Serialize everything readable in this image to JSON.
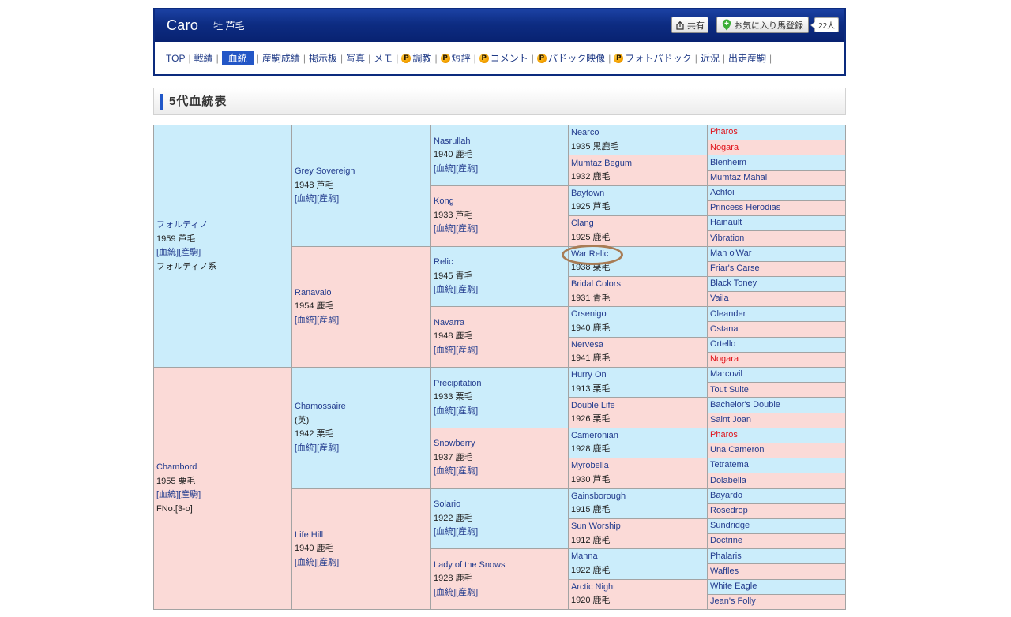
{
  "theme": {
    "brand": "#0c2b7e",
    "active_tab": "#2356c6",
    "section_marker": "#1f56c8"
  },
  "header": {
    "horse_name": "Caro",
    "sex_color": "牡 芦毛",
    "share_button": {
      "label": "共有",
      "icon": "share-icon"
    },
    "favorite_button": {
      "label": "お気に入り馬登録",
      "icon": "pin-plus-icon"
    },
    "favorite_count": "22人"
  },
  "nav": {
    "separator": "|",
    "premium_icon": {
      "name": "premium-p-icon",
      "glyph": "P"
    },
    "items": [
      {
        "label": "TOP"
      },
      {
        "label": "戦績"
      },
      {
        "label": "血統",
        "active": true
      },
      {
        "label": "産駒成績"
      },
      {
        "label": "掲示板"
      },
      {
        "label": "写真"
      },
      {
        "label": "メモ"
      },
      {
        "label": "調教",
        "premium": true
      },
      {
        "label": "短評",
        "premium": true
      },
      {
        "label": "コメント",
        "premium": true
      },
      {
        "label": "パドック映像",
        "premium": true
      },
      {
        "label": "フォトパドック",
        "premium": true
      },
      {
        "label": "近況"
      },
      {
        "label": "出走産駒"
      }
    ]
  },
  "section": {
    "title": "5代血統表"
  },
  "pedigree": {
    "colors": {
      "sire_bg": "#cbedfb",
      "dam_bg": "#fbdad7",
      "link": "#233c8e",
      "cross": "#e0141b"
    },
    "link_labels": [
      "[血統]",
      "[産駒]"
    ],
    "generations": [
      {
        "show_links": true,
        "horses": [
          {
            "name": "フォルティノ",
            "info": "1959 芦毛",
            "note": "フォルティノ系"
          },
          {
            "name": "Chambord",
            "info": "1955 栗毛",
            "note": "FNo.[3-o]"
          }
        ]
      },
      {
        "show_links": true,
        "horses": [
          {
            "name": "Grey Sovereign",
            "info": "1948 芦毛"
          },
          {
            "name": "Ranavalo",
            "info": "1954 鹿毛"
          },
          {
            "name": "Chamossaire",
            "origin": "(英)",
            "info": "1942 栗毛"
          },
          {
            "name": "Life Hill",
            "info": "1940 鹿毛"
          }
        ]
      },
      {
        "show_links": true,
        "horses": [
          {
            "name": "Nasrullah",
            "info": "1940 鹿毛"
          },
          {
            "name": "Kong",
            "info": "1933 芦毛"
          },
          {
            "name": "Relic",
            "info": "1945 青毛"
          },
          {
            "name": "Navarra",
            "info": "1948 鹿毛"
          },
          {
            "name": "Precipitation",
            "info": "1933 栗毛"
          },
          {
            "name": "Snowberry",
            "info": "1937 鹿毛"
          },
          {
            "name": "Solario",
            "info": "1922 鹿毛"
          },
          {
            "name": "Lady of the Snows",
            "info": "1928 鹿毛"
          }
        ]
      },
      {
        "show_links": false,
        "horses": [
          {
            "name": "Nearco",
            "info": "1935 黒鹿毛"
          },
          {
            "name": "Mumtaz Begum",
            "info": "1932 鹿毛"
          },
          {
            "name": "Baytown",
            "info": "1925 芦毛"
          },
          {
            "name": "Clang",
            "info": "1925 鹿毛"
          },
          {
            "name": "War Relic",
            "info": "1938 栗毛"
          },
          {
            "name": "Bridal Colors",
            "info": "1931 青毛"
          },
          {
            "name": "Orsenigo",
            "info": "1940 鹿毛"
          },
          {
            "name": "Nervesa",
            "info": "1941 鹿毛"
          },
          {
            "name": "Hurry On",
            "info": "1913 栗毛"
          },
          {
            "name": "Double Life",
            "info": "1926 栗毛"
          },
          {
            "name": "Cameronian",
            "info": "1928 鹿毛"
          },
          {
            "name": "Myrobella",
            "info": "1930 芦毛"
          },
          {
            "name": "Gainsborough",
            "info": "1915 鹿毛"
          },
          {
            "name": "Sun Worship",
            "info": "1912 鹿毛"
          },
          {
            "name": "Manna",
            "info": "1922 鹿毛"
          },
          {
            "name": "Arctic Night",
            "info": "1920 鹿毛"
          }
        ]
      },
      {
        "show_links": false,
        "horses": [
          {
            "name": "Pharos",
            "cross": true
          },
          {
            "name": "Nogara",
            "cross": true
          },
          {
            "name": "Blenheim"
          },
          {
            "name": "Mumtaz Mahal"
          },
          {
            "name": "Achtoi"
          },
          {
            "name": "Princess Herodias"
          },
          {
            "name": "Hainault"
          },
          {
            "name": "Vibration"
          },
          {
            "name": "Man o'War"
          },
          {
            "name": "Friar's Carse"
          },
          {
            "name": "Black Toney"
          },
          {
            "name": "Vaila"
          },
          {
            "name": "Oleander"
          },
          {
            "name": "Ostana"
          },
          {
            "name": "Ortello"
          },
          {
            "name": "Nogara",
            "cross": true
          },
          {
            "name": "Marcovil"
          },
          {
            "name": "Tout Suite"
          },
          {
            "name": "Bachelor's Double"
          },
          {
            "name": "Saint Joan"
          },
          {
            "name": "Pharos",
            "cross": true
          },
          {
            "name": "Una Cameron"
          },
          {
            "name": "Tetratema"
          },
          {
            "name": "Dolabella"
          },
          {
            "name": "Bayardo"
          },
          {
            "name": "Rosedrop"
          },
          {
            "name": "Sundridge"
          },
          {
            "name": "Doctrine"
          },
          {
            "name": "Phalaris"
          },
          {
            "name": "Waffles"
          },
          {
            "name": "White Eagle"
          },
          {
            "name": "Jean's Folly"
          }
        ]
      }
    ]
  },
  "annotation": {
    "color": "#a87c55"
  }
}
